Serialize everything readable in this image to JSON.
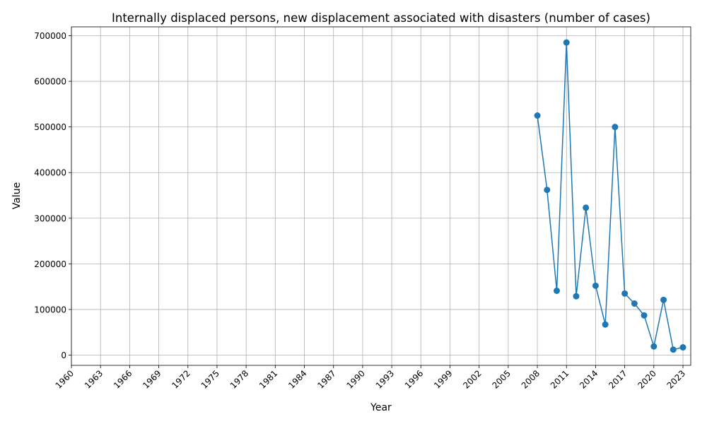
{
  "chart_data": {
    "type": "line",
    "title": "Internally displaced persons, new displacement associated with disasters (number of cases)",
    "xlabel": "Year",
    "ylabel": "Value",
    "xlim": [
      1960,
      2023
    ],
    "ylim": [
      0,
      700000
    ],
    "grid": true,
    "x_ticks": [
      "1960",
      "1963",
      "1966",
      "1969",
      "1972",
      "1975",
      "1978",
      "1981",
      "1984",
      "1987",
      "1990",
      "1993",
      "1996",
      "1999",
      "2002",
      "2005",
      "2008",
      "2011",
      "2014",
      "2017",
      "2020",
      "2023"
    ],
    "y_ticks": [
      "0",
      "100000",
      "200000",
      "300000",
      "400000",
      "500000",
      "600000",
      "700000"
    ],
    "series": [
      {
        "color": "#1f77b4",
        "x": [
          2008,
          2009,
          2010,
          2011,
          2012,
          2013,
          2014,
          2015,
          2016,
          2017,
          2018,
          2019,
          2020,
          2021,
          2022,
          2023
        ],
        "values": [
          525000,
          362000,
          141000,
          685000,
          129000,
          323000,
          152000,
          67000,
          500000,
          135000,
          113000,
          87000,
          19000,
          121000,
          12000,
          17000
        ]
      }
    ]
  }
}
